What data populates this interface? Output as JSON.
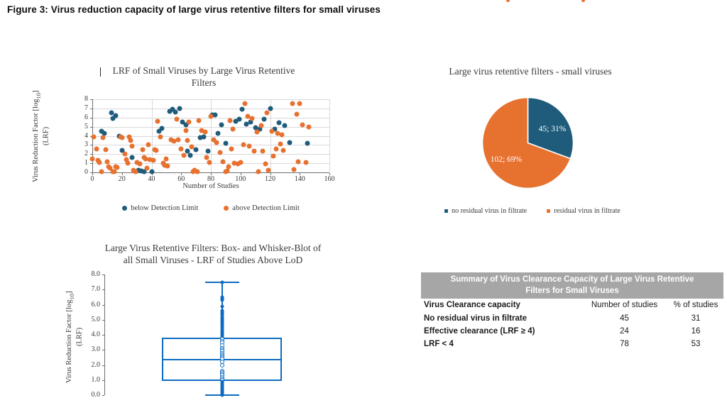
{
  "figure_title": "Figure 3: Virus reduction capacity of large virus retentive filters for small viruses",
  "colors": {
    "blue": "#1F5C7B",
    "orange": "#E7712F",
    "box_blue": "#0D6CC1",
    "table_header_bg": "#A6A6A6",
    "gridline": "#D9D9D9",
    "axis": "#6E6E6E"
  },
  "chart_data": [
    {
      "type": "scatter",
      "title": "LRF of Small Viruses by Large Virus Retentive Filters",
      "title_lines": [
        "LRF of Small Viruses by Large Virus Retentive",
        "Filters"
      ],
      "xlabel": "Number of Studies",
      "ylabel_parts": {
        "pre": "Virus Reduction Factor [log",
        "sub": "10",
        "post": "] (LRF)"
      },
      "xlim": [
        0,
        160
      ],
      "ylim": [
        0,
        8
      ],
      "x_ticks": [
        0,
        20,
        40,
        60,
        80,
        100,
        120,
        140,
        160
      ],
      "y_ticks": [
        0,
        1,
        2,
        3,
        4,
        5,
        6,
        7,
        8
      ],
      "grid": {
        "horizontal_every": 1,
        "vertical_every": 40
      },
      "legend_position": "bottom",
      "series": [
        {
          "name": "below Detection Limit",
          "color": "#1F5C7B",
          "points": [
            [
              6,
              4.5
            ],
            [
              8,
              4.3
            ],
            [
              13,
              6.5
            ],
            [
              14,
              5.9
            ],
            [
              16,
              6.2
            ],
            [
              18,
              4.0
            ],
            [
              20,
              2.4
            ],
            [
              27,
              1.6
            ],
            [
              31,
              0.2
            ],
            [
              33,
              0.15
            ],
            [
              35,
              0.1
            ],
            [
              40,
              0.05
            ],
            [
              45,
              4.5
            ],
            [
              47,
              4.8
            ],
            [
              52,
              6.7
            ],
            [
              54,
              6.9
            ],
            [
              56,
              6.6
            ],
            [
              59,
              7.0
            ],
            [
              61,
              5.5
            ],
            [
              63,
              5.2
            ],
            [
              64,
              2.3
            ],
            [
              66,
              1.9
            ],
            [
              70,
              2.5
            ],
            [
              73,
              3.8
            ],
            [
              75,
              3.9
            ],
            [
              78,
              2.3
            ],
            [
              81,
              6.3
            ],
            [
              83,
              6.3
            ],
            [
              85,
              4.3
            ],
            [
              87,
              5.2
            ],
            [
              90,
              3.2
            ],
            [
              97,
              5.6
            ],
            [
              99,
              5.8
            ],
            [
              101,
              6.9
            ],
            [
              104,
              5.3
            ],
            [
              107,
              5.5
            ],
            [
              110,
              4.9
            ],
            [
              113,
              4.7
            ],
            [
              116,
              5.8
            ],
            [
              120,
              7.0
            ],
            [
              123,
              4.7
            ],
            [
              126,
              5.4
            ],
            [
              130,
              5.1
            ],
            [
              133,
              3.3
            ],
            [
              145,
              3.2
            ]
          ]
        },
        {
          "name": "above Detection Limit",
          "color": "#E7712F",
          "points": [
            [
              0,
              1.5
            ],
            [
              1,
              3.9
            ],
            [
              3,
              2.6
            ],
            [
              4,
              1.3
            ],
            [
              5,
              1.1
            ],
            [
              6,
              0.05
            ],
            [
              7,
              3.8
            ],
            [
              9,
              2.5
            ],
            [
              10,
              1.2
            ],
            [
              11,
              0.6
            ],
            [
              12,
              0.5
            ],
            [
              14,
              0.05
            ],
            [
              15,
              0.1
            ],
            [
              16,
              0.6
            ],
            [
              17,
              0.55
            ],
            [
              19,
              3.9
            ],
            [
              20,
              3.8
            ],
            [
              22,
              2.0
            ],
            [
              23,
              1.4
            ],
            [
              24,
              1.0
            ],
            [
              25,
              3.9
            ],
            [
              26,
              3.5
            ],
            [
              27,
              2.9
            ],
            [
              28,
              0.2
            ],
            [
              29,
              0.05
            ],
            [
              30,
              1.1
            ],
            [
              32,
              0.9
            ],
            [
              34,
              2.5
            ],
            [
              35,
              1.6
            ],
            [
              36,
              1.5
            ],
            [
              37,
              0.5
            ],
            [
              38,
              3.0
            ],
            [
              39,
              1.4
            ],
            [
              41,
              1.3
            ],
            [
              42,
              2.5
            ],
            [
              43,
              2.4
            ],
            [
              44,
              5.6
            ],
            [
              46,
              3.9
            ],
            [
              48,
              1.0
            ],
            [
              49,
              0.8
            ],
            [
              50,
              1.5
            ],
            [
              51,
              0.7
            ],
            [
              53,
              3.6
            ],
            [
              55,
              3.4
            ],
            [
              57,
              5.8
            ],
            [
              58,
              3.6
            ],
            [
              60,
              2.6
            ],
            [
              62,
              1.9
            ],
            [
              63,
              4.6
            ],
            [
              64,
              3.5
            ],
            [
              65,
              5.5
            ],
            [
              67,
              2.8
            ],
            [
              68,
              0.1
            ],
            [
              69,
              0.2
            ],
            [
              71,
              0.05
            ],
            [
              72,
              5.7
            ],
            [
              74,
              4.6
            ],
            [
              76,
              4.4
            ],
            [
              77,
              1.6
            ],
            [
              79,
              1.1
            ],
            [
              80,
              6.1
            ],
            [
              82,
              3.6
            ],
            [
              84,
              3.3
            ],
            [
              86,
              2.2
            ],
            [
              88,
              1.2
            ],
            [
              90,
              0.1
            ],
            [
              91,
              0.15
            ],
            [
              92,
              0.6
            ],
            [
              93,
              5.7
            ],
            [
              94,
              2.6
            ],
            [
              95,
              4.7
            ],
            [
              96,
              1.0
            ],
            [
              98,
              0.9
            ],
            [
              100,
              1.1
            ],
            [
              102,
              3.0
            ],
            [
              103,
              7.5
            ],
            [
              105,
              6.1
            ],
            [
              106,
              2.9
            ],
            [
              108,
              5.9
            ],
            [
              109,
              2.3
            ],
            [
              111,
              4.4
            ],
            [
              112,
              0.05
            ],
            [
              114,
              5.1
            ],
            [
              115,
              2.3
            ],
            [
              117,
              0.9
            ],
            [
              118,
              6.5
            ],
            [
              119,
              0.2
            ],
            [
              121,
              4.5
            ],
            [
              122,
              1.8
            ],
            [
              124,
              2.6
            ],
            [
              125,
              4.3
            ],
            [
              127,
              3.1
            ],
            [
              128,
              4.1
            ],
            [
              129,
              2.4
            ],
            [
              135,
              7.5
            ],
            [
              136,
              0.3
            ],
            [
              138,
              6.4
            ],
            [
              139,
              1.2
            ],
            [
              140,
              7.5
            ],
            [
              142,
              5.2
            ],
            [
              144,
              1.1
            ],
            [
              146,
              5.0
            ]
          ]
        }
      ]
    },
    {
      "type": "pie",
      "title": "Large virus retentive filters - small viruses",
      "start_angle": "top, clockwise",
      "slices": [
        {
          "label": "no residual virus in filtrate",
          "value": 45,
          "pct": 31,
          "data_label": "45; 31%",
          "color": "#1F5C7B"
        },
        {
          "label": "residual virus in filtrate",
          "value": 102,
          "pct": 69,
          "data_label": "102; 69%",
          "color": "#E7712F"
        }
      ],
      "legend_position": "bottom"
    },
    {
      "type": "box",
      "title": "Large Virus Retentive Filters: Box- and Whisker-Blot of all Small Viruses - LRF of Studies Above LoD",
      "title_lines": [
        "Large Virus Retentive Filters: Box- and Whisker-Blot of",
        "all Small Viruses - LRF of Studies Above LoD"
      ],
      "ylabel_parts": {
        "pre": "Virus Reduction Factor [log",
        "sub": "10",
        "post": "]",
        "line2": "(LRF)"
      },
      "ylim": [
        0,
        8
      ],
      "y_ticks": [
        "0.0",
        "1.0",
        "2.0",
        "3.0",
        "4.0",
        "5.0",
        "6.0",
        "7.0",
        "8.0"
      ],
      "stats": {
        "whisker_low": 0.0,
        "q1": 0.95,
        "median": 2.35,
        "q3": 3.8,
        "whisker_high": 7.5
      },
      "points": [
        7.5,
        6.5,
        6.45,
        6.4,
        6.35,
        6.3,
        5.9,
        5.6,
        5.5,
        5.4,
        5.3,
        5.2,
        5.1,
        5.0,
        4.9,
        4.8,
        4.7,
        4.6,
        4.5,
        4.4,
        4.3,
        4.2,
        4.1,
        4.0,
        3.9,
        3.8,
        3.7,
        3.6,
        3.5,
        3.3,
        3.1,
        3.0,
        2.9,
        2.8,
        2.7,
        2.6,
        2.5,
        2.4,
        2.2,
        2.0,
        1.6,
        1.5,
        1.4,
        1.3,
        1.2,
        1.1,
        1.0,
        0.9,
        0.8,
        0.7,
        0.6,
        0.5,
        0.45,
        0.4,
        0.35,
        0.3,
        0.25,
        0.2,
        0.15,
        0.1,
        0.05,
        0.0
      ],
      "color": "#0D6CC1"
    },
    {
      "type": "table",
      "title": "Summary of Virus Clearance Capacity of Large Virus Retentive Filters for Small Viruses",
      "columns": [
        "Virus Clearance capacity",
        "Number of studies",
        "% of studies"
      ],
      "rows": [
        [
          "No residual virus in filtrate",
          "45",
          "31"
        ],
        [
          "Effective clearance (LRF ≥ 4)",
          "24",
          "16"
        ],
        [
          "LRF < 4",
          "78",
          "53"
        ]
      ],
      "header_bg": "#A6A6A6"
    }
  ]
}
